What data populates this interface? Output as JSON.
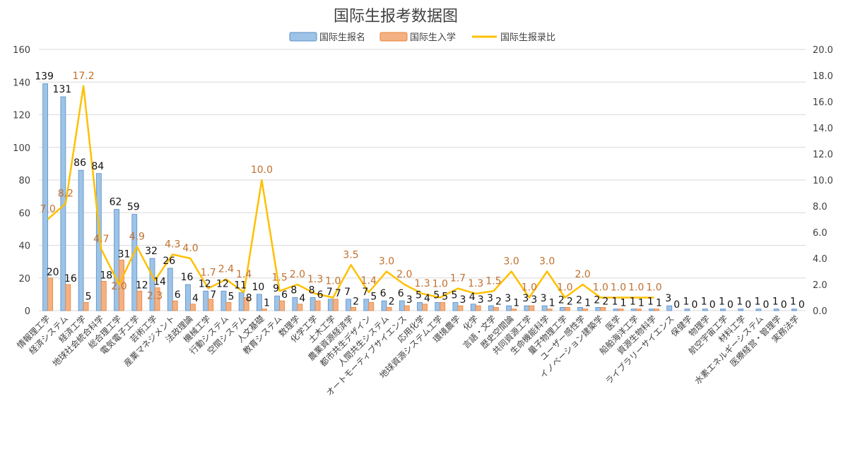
{
  "chart_data": {
    "type": "bar",
    "title": "国际生报考数据图",
    "legend_placement": "top",
    "grid": true,
    "categories": [
      "情報理工学",
      "経済システム",
      "経済工学",
      "地球社会統合科学",
      "総合理工学",
      "電気電子工学",
      "芸術工学",
      "産業マネジメント",
      "法政理論",
      "機械工学",
      "行動システム",
      "空間システム",
      "人文基礎",
      "教育システム",
      "数理学",
      "化学工学",
      "土木工学",
      "農業資源経済学",
      "都市共生デザイン",
      "人間共生システム",
      "オートモーティブサイエンス",
      "応用化学",
      "地球資源システム工学",
      "環境農学",
      "化学",
      "言語・文学",
      "歴史空間論",
      "共同資源工学",
      "生命機能科学",
      "量子物理工学",
      "ユーザー感性学",
      "イノベーション建築学",
      "医学",
      "船舶海洋工学",
      "資源生物科学",
      "ライブラリーサイエンス",
      "保健学",
      "物理学",
      "航空宇宙工学",
      "材料工学",
      "水素エネルギーシステム",
      "医療経営・管理学",
      "実務法学"
    ],
    "series": [
      {
        "name": "国际生报名",
        "type": "bar",
        "axis": "left",
        "color": "#9dc3e6",
        "values": [
          139,
          131,
          86,
          84,
          62,
          59,
          32,
          26,
          16,
          12,
          12,
          11,
          10,
          9,
          8,
          8,
          7,
          7,
          7,
          6,
          6,
          5,
          5,
          5,
          4,
          3,
          3,
          3,
          3,
          2,
          2,
          2,
          1,
          1,
          1,
          3,
          1,
          1,
          1,
          1,
          1,
          1,
          1
        ]
      },
      {
        "name": "国际生入学",
        "type": "bar",
        "axis": "left",
        "color": "#f4b183",
        "values": [
          20,
          16,
          5,
          18,
          31,
          12,
          14,
          6,
          4,
          7,
          5,
          8,
          1,
          6,
          4,
          6,
          7,
          2,
          5,
          2,
          3,
          4,
          5,
          3,
          3,
          2,
          1,
          3,
          1,
          2,
          1,
          2,
          1,
          1,
          1,
          0,
          0,
          0,
          0,
          0,
          0,
          0,
          0
        ]
      },
      {
        "name": "国际生报录比",
        "type": "line",
        "axis": "right",
        "color": "#ffc000",
        "values": [
          7.0,
          8.2,
          17.2,
          4.7,
          2.0,
          4.9,
          2.3,
          4.3,
          4.0,
          1.7,
          2.4,
          1.4,
          10.0,
          1.5,
          2.0,
          1.3,
          1.0,
          3.5,
          1.4,
          3.0,
          2.0,
          1.3,
          1.0,
          1.7,
          1.3,
          1.5,
          3.0,
          1.0,
          3.0,
          1.0,
          2.0,
          1.0,
          1.0,
          1.0,
          1.0,
          null,
          null,
          null,
          null,
          null,
          null,
          null,
          null
        ]
      }
    ],
    "y_left": {
      "range": [
        0,
        160
      ],
      "ticks": [
        "0",
        "20",
        "40",
        "60",
        "80",
        "100",
        "120",
        "140",
        "160"
      ]
    },
    "y_right": {
      "range": [
        0,
        20
      ],
      "ticks": [
        "0.0",
        "2.0",
        "4.0",
        "6.0",
        "8.0",
        "10.0",
        "12.0",
        "14.0",
        "16.0",
        "18.0",
        "20.0"
      ]
    },
    "ratio_label_color": "#c0702f"
  }
}
